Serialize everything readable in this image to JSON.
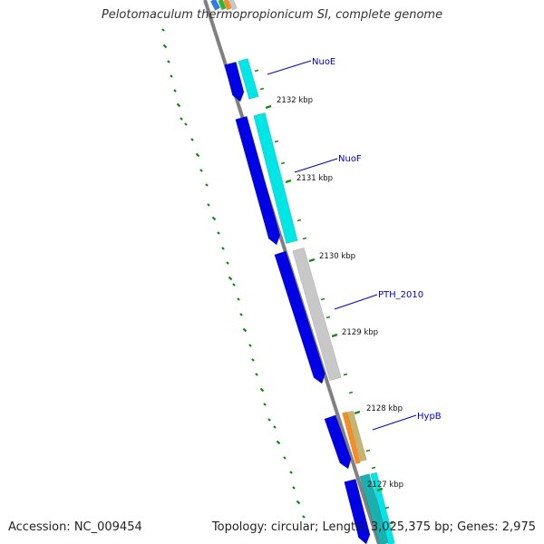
{
  "title": "Pelotomaculum thermopropionicum SI, complete genome",
  "accession": "Accession: NC_009454",
  "summary": "Topology: circular; Length: 3,025,375 bp; Genes: 2,975",
  "colors": {
    "backbone": "#808080",
    "cds_forward": "#0000e6",
    "gene_label": "#0000cc",
    "scale_tick": "#1a8a1a",
    "gc_dots": "#0a8a0a"
  },
  "scale_labels": [
    "2132 kbp",
    "2131 kbp",
    "2130 kbp",
    "2129 kbp",
    "2128 kbp",
    "2127 kbp"
  ],
  "gene_labels": [
    "NuoE",
    "NuoF",
    "PTH_2010",
    "HypB"
  ]
}
